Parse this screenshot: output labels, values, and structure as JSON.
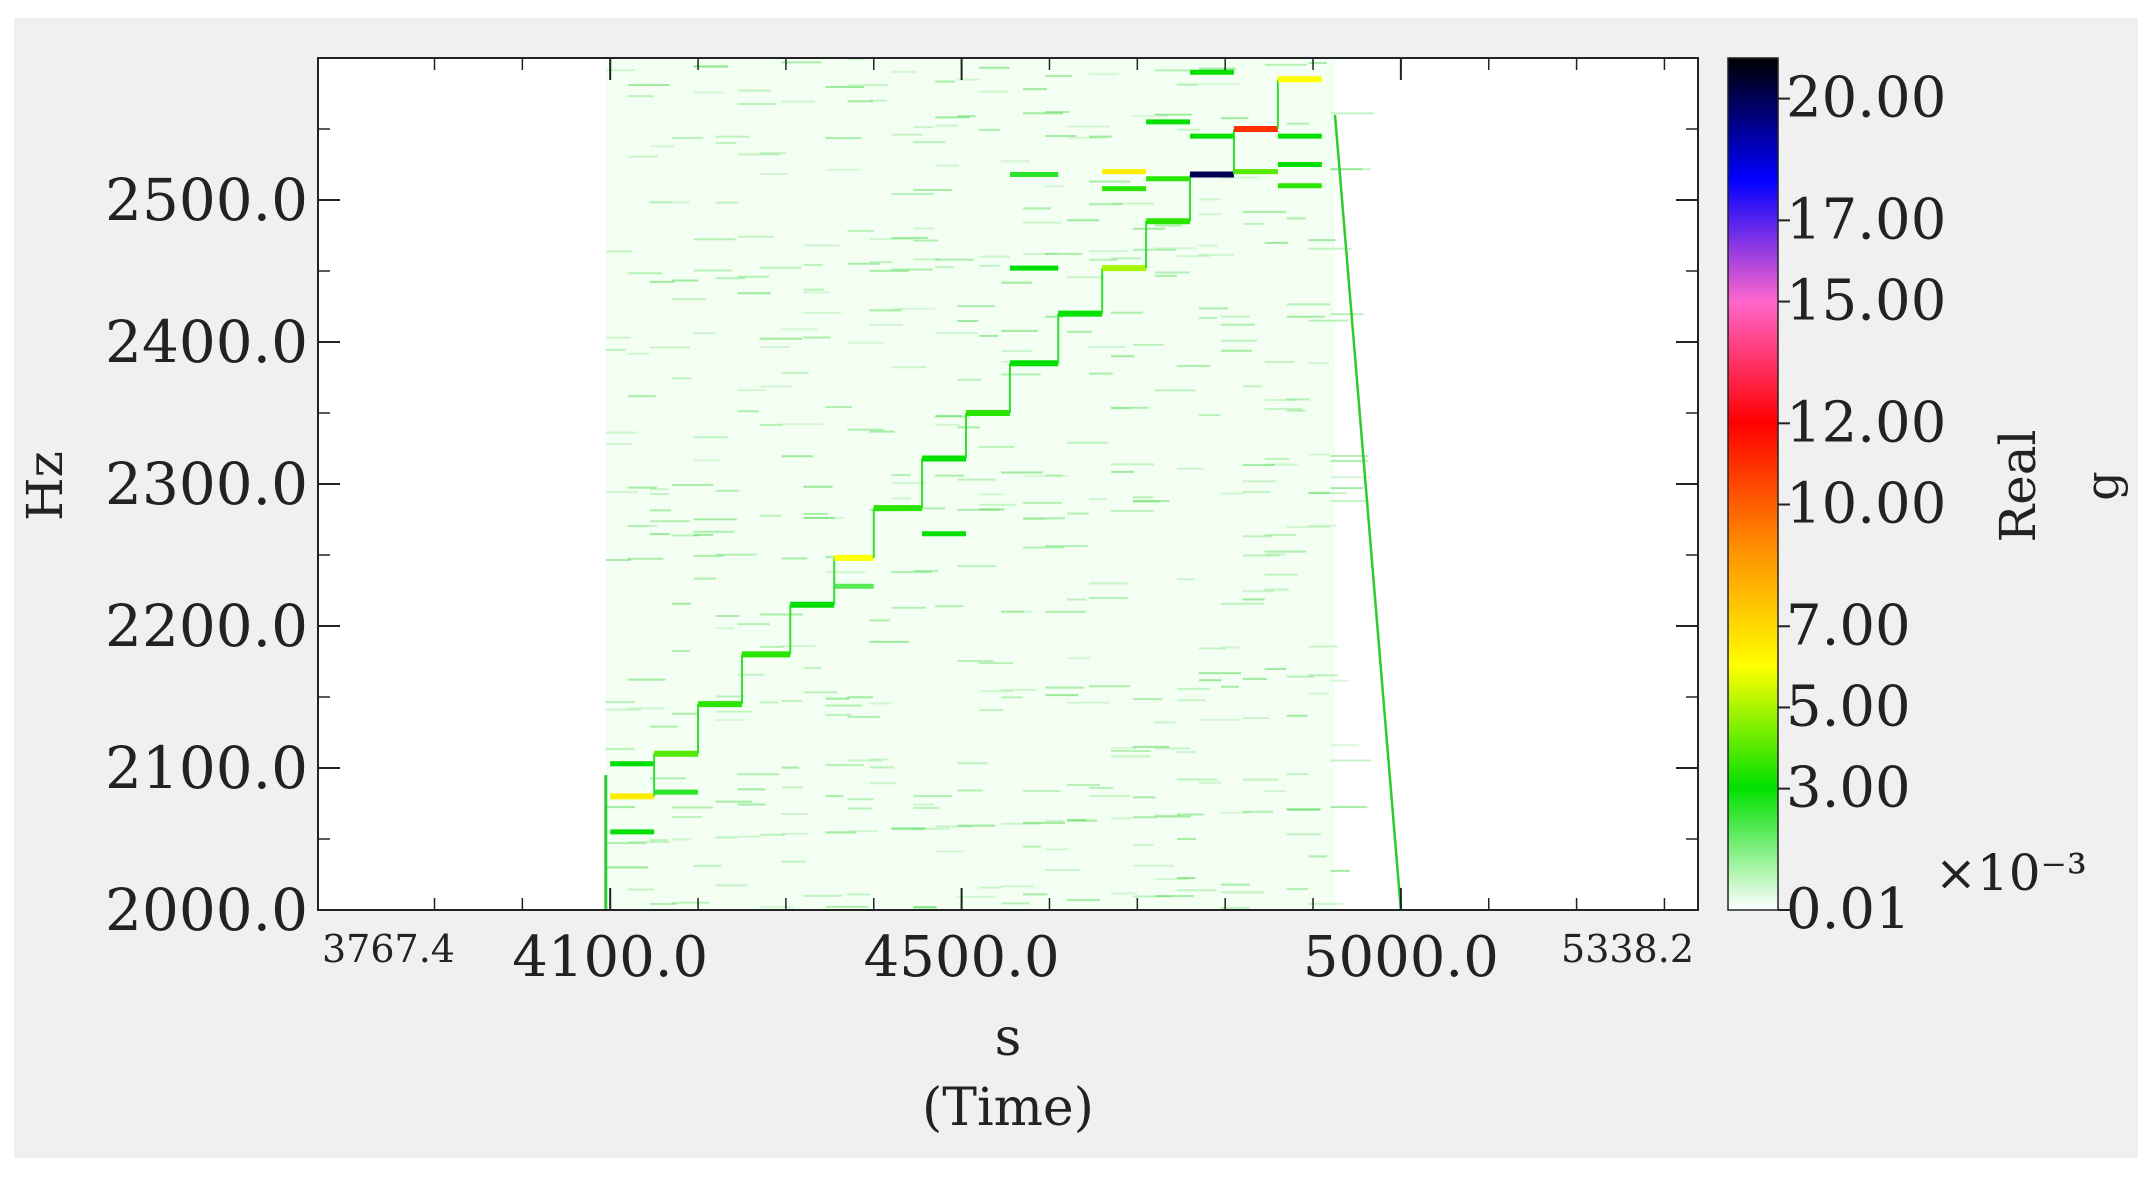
{
  "chart_data": {
    "type": "heatmap",
    "title": "",
    "xlabel": "s",
    "xlabel_sub": "(Time)",
    "ylabel": "Hz",
    "xlim": [
      3767.4,
      5338.2
    ],
    "ylim": [
      2000.0,
      2600.0
    ],
    "x_ticks": [
      {
        "value": 3767.4,
        "label": "3767.4"
      },
      {
        "value": 4100.0,
        "label": "4100.0"
      },
      {
        "value": 4500.0,
        "label": "4500.0"
      },
      {
        "value": 5000.0,
        "label": "5000.0"
      },
      {
        "value": 5338.2,
        "label": "5338.2"
      }
    ],
    "y_ticks": [
      {
        "value": 2000.0,
        "label": "2000.0"
      },
      {
        "value": 2100.0,
        "label": "2100.0"
      },
      {
        "value": 2200.0,
        "label": "2200.0"
      },
      {
        "value": 2300.0,
        "label": "2300.0"
      },
      {
        "value": 2400.0,
        "label": "2400.0"
      },
      {
        "value": 2500.0,
        "label": "2500.0"
      }
    ],
    "colorbar": {
      "label": "Real",
      "unit": "g",
      "exponent_label": "×10⁻³",
      "min": 0.01,
      "max": 21,
      "ticks": [
        {
          "value": 0.01,
          "label": "0.01"
        },
        {
          "value": 3.0,
          "label": "3.00"
        },
        {
          "value": 5.0,
          "label": "5.00"
        },
        {
          "value": 7.0,
          "label": "7.00"
        },
        {
          "value": 10.0,
          "label": "10.00"
        },
        {
          "value": 12.0,
          "label": "12.00"
        },
        {
          "value": 15.0,
          "label": "15.00"
        },
        {
          "value": 17.0,
          "label": "17.00"
        },
        {
          "value": 20.0,
          "label": "20.00"
        }
      ],
      "colors": [
        "#ffffff",
        "#00e000",
        "#ffff00",
        "#ff8c00",
        "#ff0000",
        "#ff66cc",
        "#0000ff",
        "#000000"
      ]
    },
    "step_track": [
      {
        "t0": 4100,
        "t1": 4150,
        "f": 2080,
        "v": 6.5
      },
      {
        "t0": 4150,
        "t1": 4200,
        "f": 2110,
        "v": 4.0
      },
      {
        "t0": 4200,
        "t1": 4250,
        "f": 2145,
        "v": 3.5
      },
      {
        "t0": 4250,
        "t1": 4305,
        "f": 2180,
        "v": 3.5
      },
      {
        "t0": 4305,
        "t1": 4355,
        "f": 2215,
        "v": 3.0
      },
      {
        "t0": 4355,
        "t1": 4400,
        "f": 2248,
        "v": 6.0
      },
      {
        "t0": 4400,
        "t1": 4455,
        "f": 2283,
        "v": 3.5
      },
      {
        "t0": 4455,
        "t1": 4505,
        "f": 2318,
        "v": 3.0
      },
      {
        "t0": 4505,
        "t1": 4555,
        "f": 2350,
        "v": 3.5
      },
      {
        "t0": 4555,
        "t1": 4610,
        "f": 2385,
        "v": 3.0
      },
      {
        "t0": 4610,
        "t1": 4660,
        "f": 2420,
        "v": 3.0
      },
      {
        "t0": 4660,
        "t1": 4710,
        "f": 2452,
        "v": 5.0
      },
      {
        "t0": 4710,
        "t1": 4760,
        "f": 2485,
        "v": 3.5
      },
      {
        "t0": 4760,
        "t1": 4810,
        "f": 2518,
        "v": 20.0
      },
      {
        "t0": 4810,
        "t1": 4860,
        "f": 2550,
        "v": 11.0
      },
      {
        "t0": 4860,
        "t1": 4910,
        "f": 2585,
        "v": 6.0
      }
    ],
    "secondary_lines": [
      {
        "t0": 4100,
        "t1": 4150,
        "f": 2103,
        "v": 3.0
      },
      {
        "t0": 4100,
        "t1": 4150,
        "f": 2055,
        "v": 3.0
      },
      {
        "t0": 4150,
        "t1": 4200,
        "f": 2083,
        "v": 2.5
      },
      {
        "t0": 4355,
        "t1": 4400,
        "f": 2228,
        "v": 2.0
      },
      {
        "t0": 4455,
        "t1": 4505,
        "f": 2265,
        "v": 3.0
      },
      {
        "t0": 4555,
        "t1": 4610,
        "f": 2452,
        "v": 3.0
      },
      {
        "t0": 4555,
        "t1": 4610,
        "f": 2518,
        "v": 2.5
      },
      {
        "t0": 4660,
        "t1": 4710,
        "f": 2520,
        "v": 6.5
      },
      {
        "t0": 4660,
        "t1": 4710,
        "f": 2508,
        "v": 3.5
      },
      {
        "t0": 4710,
        "t1": 4760,
        "f": 2515,
        "v": 3.5
      },
      {
        "t0": 4710,
        "t1": 4760,
        "f": 2555,
        "v": 3.0
      },
      {
        "t0": 4760,
        "t1": 4810,
        "f": 2545,
        "v": 3.0
      },
      {
        "t0": 4760,
        "t1": 4810,
        "f": 2590,
        "v": 3.0
      },
      {
        "t0": 4810,
        "t1": 4860,
        "f": 2520,
        "v": 4.0
      },
      {
        "t0": 4860,
        "t1": 4910,
        "f": 2510,
        "v": 3.5
      },
      {
        "t0": 4860,
        "t1": 4910,
        "f": 2545,
        "v": 3.0
      },
      {
        "t0": 4860,
        "t1": 4910,
        "f": 2525,
        "v": 3.0
      }
    ],
    "active_band": {
      "t0": 4095,
      "t1": 4925,
      "tail_end": 5000
    }
  }
}
